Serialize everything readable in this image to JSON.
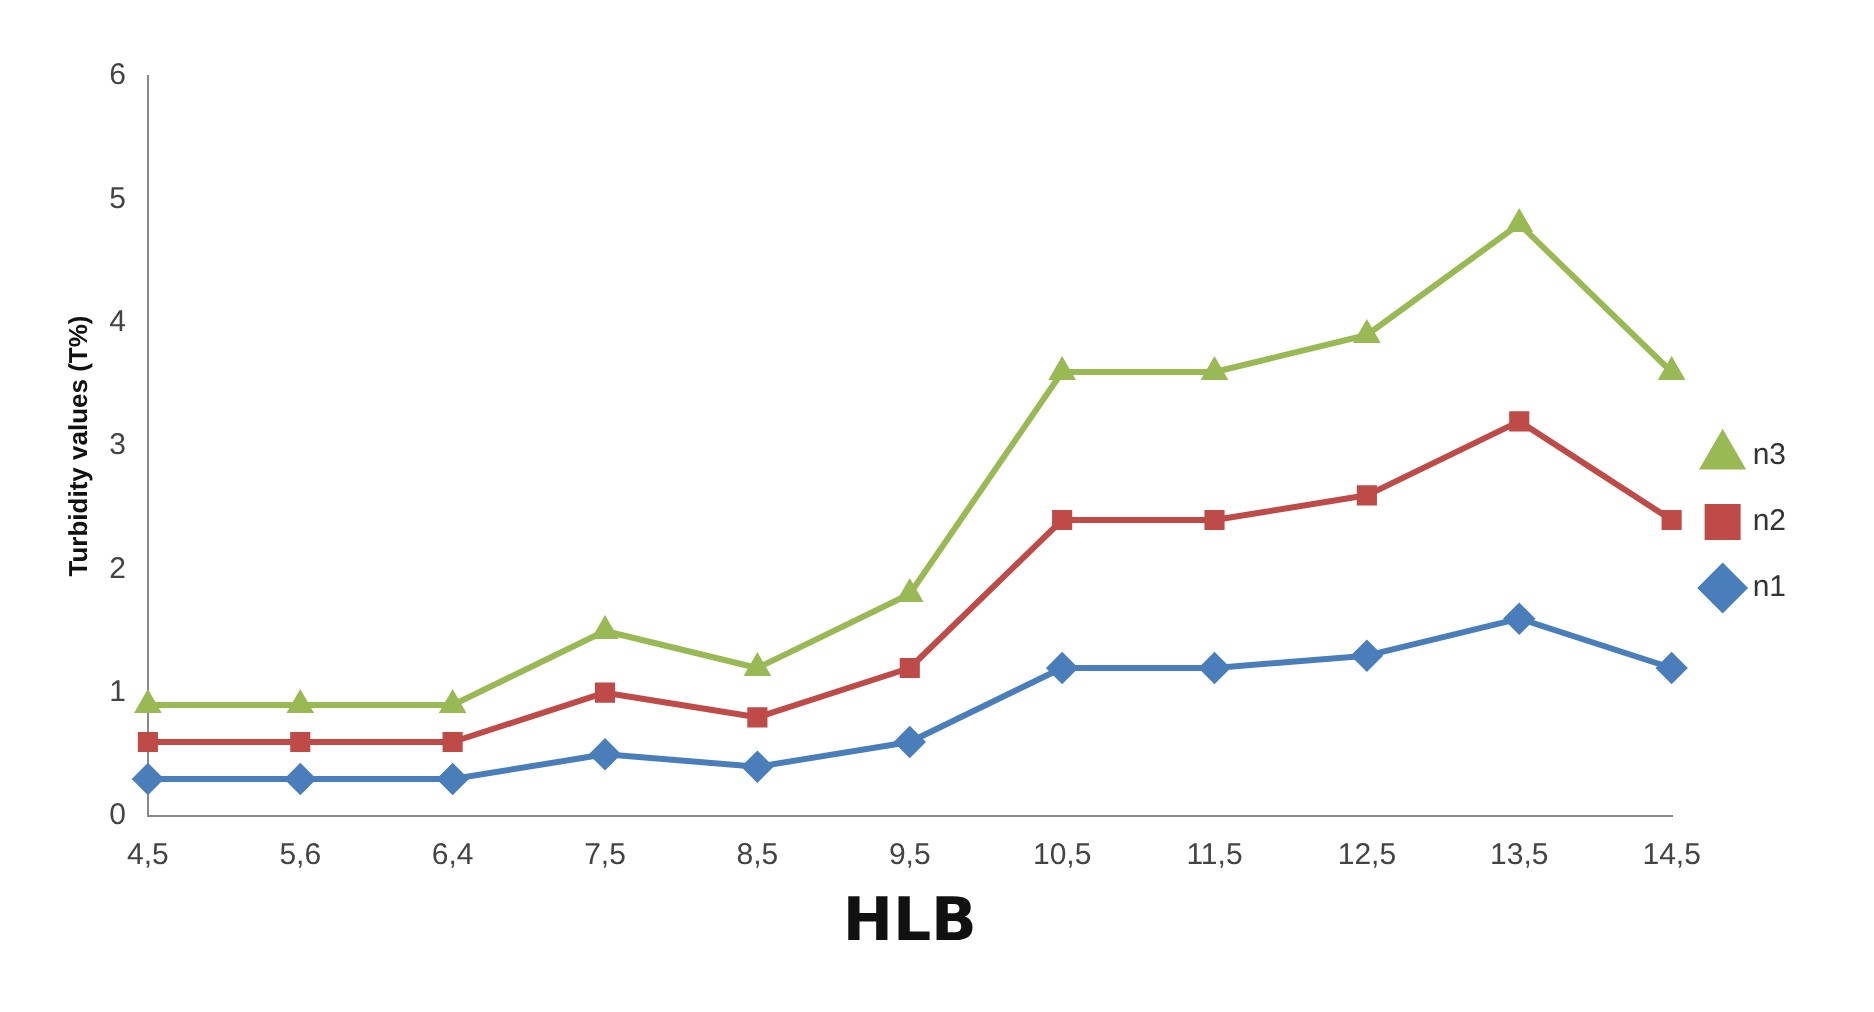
{
  "chart_data": {
    "type": "line",
    "xlabel": "HLB",
    "ylabel": "Turbidity values (T%)",
    "categories": [
      "4,5",
      "5,6",
      "6,4",
      "7,5",
      "8,5",
      "9,5",
      "10,5",
      "11,5",
      "12,5",
      "13,5",
      "14,5"
    ],
    "series": [
      {
        "name": "n1",
        "color": "#4a7ebb",
        "marker": "diamond",
        "values": [
          0.3,
          0.3,
          0.3,
          0.5,
          0.4,
          0.6,
          1.2,
          1.2,
          1.3,
          1.6,
          1.2
        ]
      },
      {
        "name": "n2",
        "color": "#be4b48",
        "marker": "square",
        "values": [
          0.6,
          0.6,
          0.6,
          1.0,
          0.8,
          1.2,
          2.4,
          2.4,
          2.6,
          3.2,
          2.4
        ]
      },
      {
        "name": "n3",
        "color": "#98b954",
        "marker": "triangle",
        "values": [
          0.9,
          0.9,
          0.9,
          1.5,
          1.2,
          1.8,
          3.6,
          3.6,
          3.9,
          4.8,
          3.6
        ]
      }
    ],
    "ylim": [
      0,
      6
    ],
    "yticks": [
      0,
      1,
      2,
      3,
      4,
      5,
      6
    ],
    "grid": false,
    "legend": "right",
    "line_style": "solid"
  }
}
